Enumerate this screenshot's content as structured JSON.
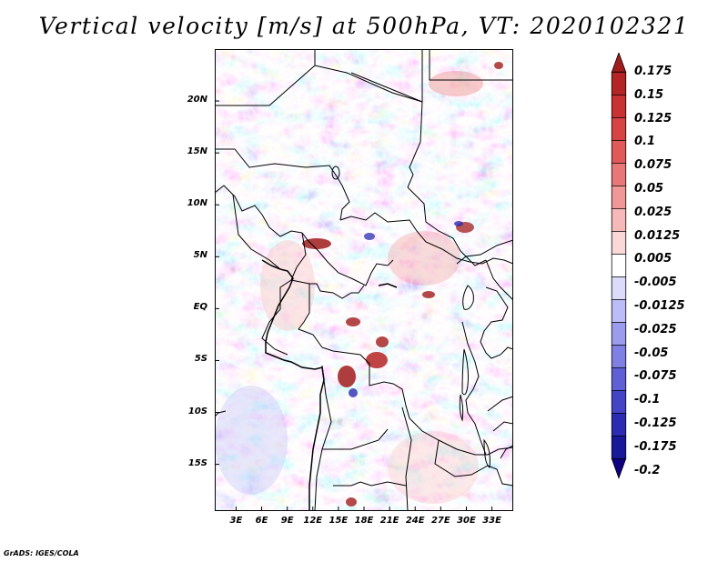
{
  "title": "Vertical velocity [m/s] at 500hPa, VT: 2020102321",
  "credit": "GrADS: IGES/COLA",
  "map": {
    "lat_labels": [
      "20N",
      "15N",
      "10N",
      "5N",
      "EQ",
      "5S",
      "10S",
      "15S"
    ],
    "lat_values": [
      20,
      15,
      10,
      5,
      0,
      -5,
      -10,
      -15
    ],
    "lon_labels": [
      "3E",
      "6E",
      "9E",
      "12E",
      "15E",
      "18E",
      "21E",
      "24E",
      "27E",
      "30E",
      "33E"
    ],
    "lon_values": [
      3,
      6,
      9,
      12,
      15,
      18,
      21,
      24,
      27,
      30,
      33
    ],
    "lon_range": [
      0.5,
      35.5
    ],
    "lat_range": [
      -19.5,
      25
    ]
  },
  "colorbar": {
    "labels": [
      "0.175",
      "0.15",
      "0.125",
      "0.1",
      "0.075",
      "0.05",
      "0.025",
      "0.0125",
      "0.005",
      "-0.005",
      "-0.0125",
      "-0.025",
      "-0.05",
      "-0.075",
      "-0.1",
      "-0.125",
      "-0.175",
      "-0.2"
    ],
    "colors": [
      "#a01c1c",
      "#b42525",
      "#c83232",
      "#d64444",
      "#e05a5a",
      "#e87878",
      "#f09898",
      "#f6b8b8",
      "#fad8d8",
      "#ffffff",
      "#dcdcfa",
      "#bcbcf6",
      "#9c9cee",
      "#8080e4",
      "#6060d6",
      "#4444c6",
      "#2c2cb2",
      "#18189a",
      "#100080"
    ]
  }
}
